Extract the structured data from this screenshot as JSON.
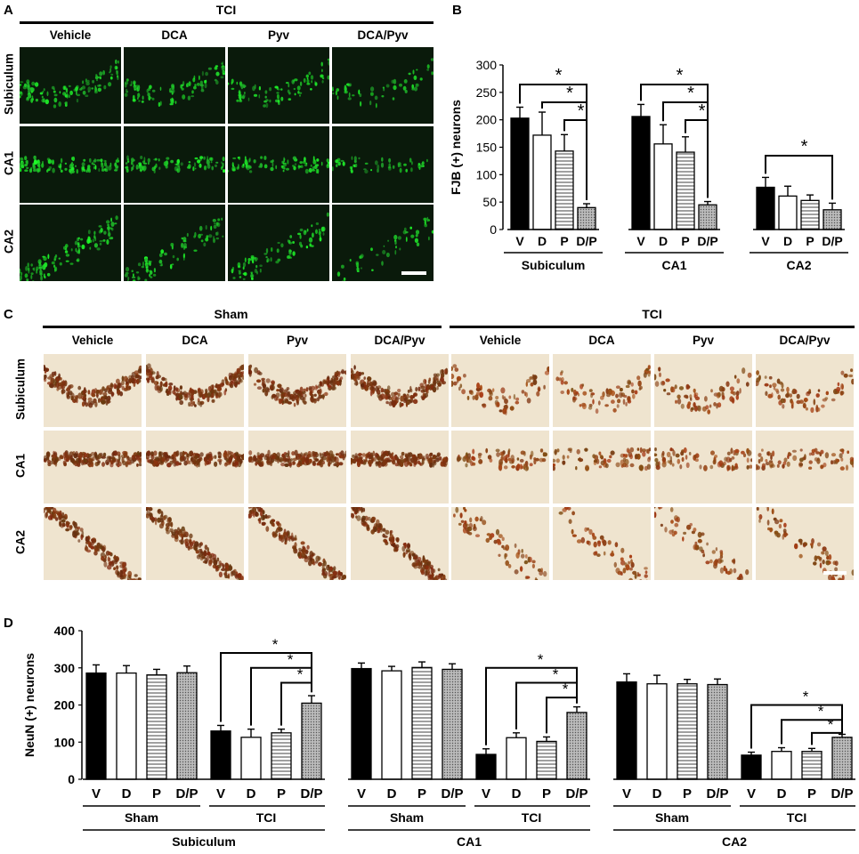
{
  "panels": {
    "a": "A",
    "b": "B",
    "c": "C",
    "d": "D"
  },
  "panelA": {
    "group": "TCI",
    "cols": [
      "Vehicle",
      "DCA",
      "Pyv",
      "DCA/Pyv"
    ],
    "rows": [
      "Subiculum",
      "CA1",
      "CA2"
    ]
  },
  "panelC": {
    "groups": [
      "Sham",
      "TCI"
    ],
    "cols": [
      "Vehicle",
      "DCA",
      "Pyv",
      "DCA/Pyv",
      "Vehicle",
      "DCA",
      "Pyv",
      "DCA/Pyv"
    ],
    "rows": [
      "Subiculum",
      "CA1",
      "CA2"
    ]
  },
  "chart_data": [
    {
      "type": "bar",
      "panel": "B",
      "ylabel": "FJB (+) neurons",
      "ylim": [
        0,
        300
      ],
      "yticks": [
        0,
        50,
        100,
        150,
        200,
        250,
        300
      ],
      "tick_labels": [
        "V",
        "D",
        "P",
        "D/P"
      ],
      "regions": [
        {
          "name": "Subiculum",
          "values": [
            203,
            172,
            143,
            40
          ],
          "errors": [
            20,
            42,
            30,
            7
          ]
        },
        {
          "name": "CA1",
          "values": [
            206,
            156,
            141,
            45
          ],
          "errors": [
            22,
            35,
            28,
            6
          ]
        },
        {
          "name": "CA2",
          "values": [
            77,
            61,
            53,
            36
          ],
          "errors": [
            18,
            18,
            10,
            12
          ]
        }
      ],
      "significance": "*",
      "fills": [
        "#000000",
        "#ffffff",
        "hatch",
        "dots"
      ]
    },
    {
      "type": "bar",
      "panel": "D",
      "ylabel": "NeuN (+) neurons",
      "ylim": [
        0,
        400
      ],
      "yticks": [
        0,
        100,
        200,
        300,
        400
      ],
      "tick_labels": [
        "V",
        "D",
        "P",
        "D/P"
      ],
      "groups": [
        "Sham",
        "TCI"
      ],
      "regions": [
        {
          "name": "Subiculum",
          "sham": [
            286,
            286,
            281,
            287
          ],
          "tci": [
            130,
            113,
            125,
            205
          ],
          "sham_err": [
            22,
            20,
            15,
            18
          ],
          "tci_err": [
            15,
            22,
            10,
            20
          ]
        },
        {
          "name": "CA1",
          "sham": [
            298,
            292,
            301,
            296
          ],
          "tci": [
            67,
            112,
            102,
            180
          ],
          "sham_err": [
            15,
            12,
            15,
            15
          ],
          "tci_err": [
            15,
            13,
            12,
            15
          ]
        },
        {
          "name": "CA2",
          "sham": [
            262,
            257,
            257,
            255
          ],
          "tci": [
            65,
            75,
            75,
            113
          ],
          "sham_err": [
            22,
            23,
            12,
            15
          ],
          "tci_err": [
            8,
            10,
            8,
            8
          ]
        }
      ],
      "significance": "*",
      "fills": [
        "#000000",
        "#ffffff",
        "hatch",
        "dots"
      ]
    }
  ]
}
